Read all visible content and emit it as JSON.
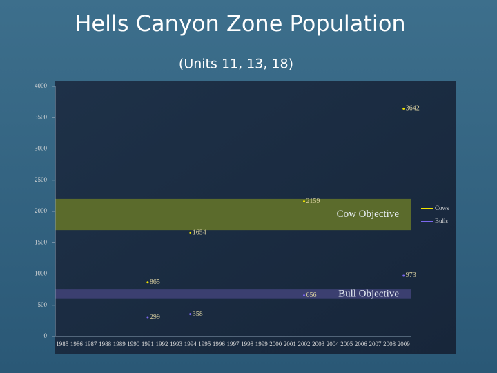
{
  "chart_data": {
    "type": "line",
    "title": "Hells Canyon Zone Population",
    "subtitle": "(Units 11, 13, 18)",
    "categories": [
      "1985",
      "1986",
      "1987",
      "1988",
      "1989",
      "1990",
      "1991",
      "1992",
      "1993",
      "1994",
      "1995",
      "1996",
      "1997",
      "1998",
      "1999",
      "2000",
      "2001",
      "2002",
      "2003",
      "2004",
      "2005",
      "2006",
      "2007",
      "2008",
      "2009"
    ],
    "series": [
      {
        "name": "Cows",
        "color": "#f2e600",
        "values": [
          null,
          null,
          null,
          null,
          null,
          null,
          865,
          null,
          null,
          1654,
          null,
          null,
          null,
          null,
          null,
          null,
          null,
          2159,
          null,
          null,
          null,
          null,
          null,
          null,
          3642
        ]
      },
      {
        "name": "Bulls",
        "color": "#7b68ee",
        "values": [
          null,
          null,
          null,
          null,
          null,
          null,
          299,
          null,
          null,
          358,
          null,
          null,
          null,
          null,
          null,
          null,
          null,
          656,
          null,
          null,
          null,
          null,
          null,
          null,
          973
        ]
      }
    ],
    "bands": [
      {
        "label": "Cow Objective",
        "range": [
          1700,
          2200
        ],
        "color": "#5b6b2c"
      },
      {
        "label": "Bull Objective",
        "range": [
          600,
          750
        ],
        "color": "#3b3f70"
      }
    ],
    "ylim": [
      0,
      4000
    ],
    "yticks": [
      0,
      500,
      1000,
      1500,
      2000,
      2500,
      3000,
      3500,
      4000
    ],
    "legend": "right"
  }
}
